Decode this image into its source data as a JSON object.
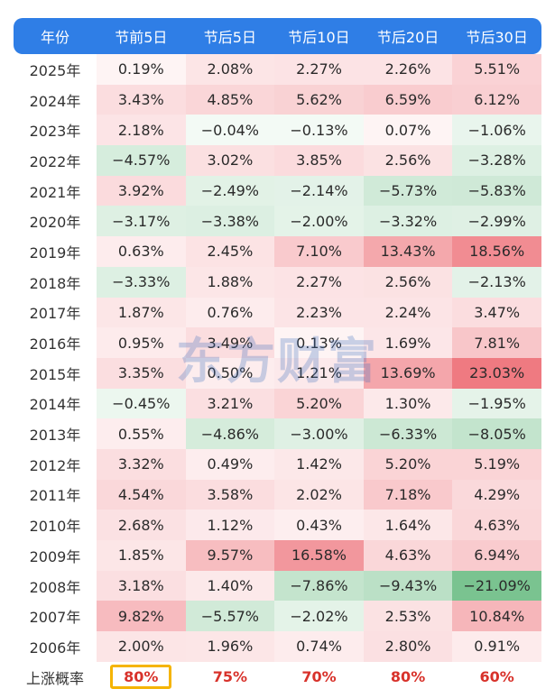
{
  "header": {
    "year": "年份",
    "cols": [
      "节前5日",
      "节后5日",
      "节后10日",
      "节后20日",
      "节后30日"
    ]
  },
  "rows": [
    {
      "year": "2025年",
      "values": [
        "0.19%",
        "2.08%",
        "2.27%",
        "2.26%",
        "5.51%"
      ]
    },
    {
      "year": "2024年",
      "values": [
        "3.43%",
        "4.85%",
        "5.62%",
        "6.59%",
        "6.12%"
      ]
    },
    {
      "year": "2023年",
      "values": [
        "2.18%",
        "−0.04%",
        "−0.13%",
        "0.07%",
        "−1.06%"
      ]
    },
    {
      "year": "2022年",
      "values": [
        "−4.57%",
        "3.02%",
        "3.85%",
        "2.56%",
        "−3.28%"
      ]
    },
    {
      "year": "2021年",
      "values": [
        "3.92%",
        "−2.49%",
        "−2.14%",
        "−5.73%",
        "−5.83%"
      ]
    },
    {
      "year": "2020年",
      "values": [
        "−3.17%",
        "−3.38%",
        "−2.00%",
        "−3.32%",
        "−2.99%"
      ]
    },
    {
      "year": "2019年",
      "values": [
        "0.63%",
        "2.45%",
        "7.10%",
        "13.43%",
        "18.56%"
      ]
    },
    {
      "year": "2018年",
      "values": [
        "−3.33%",
        "1.88%",
        "2.27%",
        "2.56%",
        "−2.13%"
      ]
    },
    {
      "year": "2017年",
      "values": [
        "1.87%",
        "0.76%",
        "2.23%",
        "2.24%",
        "3.47%"
      ]
    },
    {
      "year": "2016年",
      "values": [
        "0.95%",
        "3.49%",
        "0.13%",
        "1.69%",
        "7.81%"
      ]
    },
    {
      "year": "2015年",
      "values": [
        "3.35%",
        "0.50%",
        "1.21%",
        "13.69%",
        "23.03%"
      ]
    },
    {
      "year": "2014年",
      "values": [
        "−0.45%",
        "3.21%",
        "5.20%",
        "1.30%",
        "−1.95%"
      ]
    },
    {
      "year": "2013年",
      "values": [
        "0.55%",
        "−4.86%",
        "−3.00%",
        "−6.33%",
        "−8.05%"
      ]
    },
    {
      "year": "2012年",
      "values": [
        "3.32%",
        "0.49%",
        "1.42%",
        "5.20%",
        "5.19%"
      ]
    },
    {
      "year": "2011年",
      "values": [
        "4.54%",
        "3.58%",
        "2.02%",
        "7.18%",
        "4.29%"
      ]
    },
    {
      "year": "2010年",
      "values": [
        "2.68%",
        "1.12%",
        "0.43%",
        "1.64%",
        "4.63%"
      ]
    },
    {
      "year": "2009年",
      "values": [
        "1.85%",
        "9.57%",
        "16.58%",
        "4.63%",
        "6.94%"
      ]
    },
    {
      "year": "2008年",
      "values": [
        "3.18%",
        "1.40%",
        "−7.86%",
        "−9.43%",
        "−21.09%"
      ]
    },
    {
      "year": "2007年",
      "values": [
        "9.82%",
        "−5.57%",
        "−2.02%",
        "2.53%",
        "10.84%"
      ]
    },
    {
      "year": "2006年",
      "values": [
        "2.00%",
        "1.96%",
        "0.74%",
        "2.80%",
        "0.91%"
      ]
    }
  ],
  "probability": {
    "label": "上涨概率",
    "values": [
      "80%",
      "75%",
      "70%",
      "80%",
      "60%"
    ]
  },
  "watermark": "东方财富",
  "colors": {
    "header": "#2f7ee6",
    "pos": "#e8414b",
    "neg": "#3aa65a",
    "prob_text": "#d8322b",
    "highlight_border": "#f5b400"
  }
}
